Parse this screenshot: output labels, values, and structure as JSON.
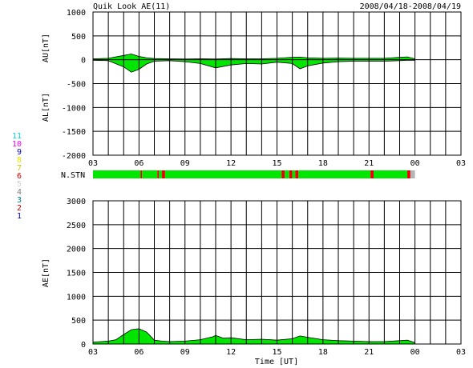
{
  "header": {
    "title": "Quik Look AE(11)",
    "date_range": "2008/04/18-2008/04/19"
  },
  "colors": {
    "fill_good": "#00e600",
    "fill_bad": "#e60000",
    "fill_missing": "#b4b4b4",
    "grid": "#000000"
  },
  "station_legend": [
    {
      "label": "11",
      "color": "#00d8d8"
    },
    {
      "label": "10",
      "color": "#ff00ff"
    },
    {
      "label": "9",
      "color": "#0000c8"
    },
    {
      "label": "8",
      "color": "#e6e600"
    },
    {
      "label": "7",
      "color": "#c8c800"
    },
    {
      "label": "6",
      "color": "#e60000"
    },
    {
      "label": "5",
      "color": "#d0d0d0"
    },
    {
      "label": "4",
      "color": "#808080"
    },
    {
      "label": "3",
      "color": "#008080"
    },
    {
      "label": "2",
      "color": "#c80000"
    },
    {
      "label": "1",
      "color": "#0000c8"
    }
  ],
  "chart_data": [
    {
      "type": "area",
      "panel": "AU/AL",
      "ylabel_upper": "AU[nT]",
      "ylabel_lower": "AL[nT]",
      "ylim": [
        -2000,
        1000
      ],
      "yticks": [
        1000,
        500,
        0,
        -500,
        -1000,
        -1500,
        -2000
      ],
      "xlim_hours": [
        3,
        27
      ],
      "xticks": [
        "03",
        "06",
        "09",
        "12",
        "15",
        "18",
        "21",
        "00",
        "03"
      ],
      "data_end_hour": 24.0,
      "grid": true,
      "au": {
        "name": "AU",
        "x": [
          3,
          4,
          5,
          5.5,
          6,
          6.5,
          7,
          8,
          9,
          10,
          11,
          12,
          13,
          14,
          15,
          16,
          16.5,
          17,
          18,
          19,
          20,
          21,
          22,
          23,
          23.5,
          24
        ],
        "values": [
          20,
          30,
          90,
          120,
          70,
          40,
          25,
          20,
          15,
          20,
          15,
          25,
          20,
          20,
          30,
          50,
          55,
          40,
          30,
          35,
          30,
          30,
          30,
          50,
          60,
          20
        ]
      },
      "al": {
        "name": "AL",
        "x": [
          3,
          4,
          5,
          5.5,
          6,
          6.5,
          7,
          8,
          9,
          10,
          11,
          12,
          13,
          14,
          15,
          16,
          16.5,
          17,
          18,
          19,
          20,
          21,
          22,
          23,
          23.5,
          24
        ],
        "values": [
          -10,
          -20,
          -150,
          -260,
          -200,
          -90,
          -30,
          -20,
          -40,
          -80,
          -170,
          -110,
          -80,
          -90,
          -50,
          -80,
          -190,
          -130,
          -70,
          -40,
          -30,
          -30,
          -30,
          -20,
          -10,
          -10
        ]
      }
    },
    {
      "type": "bar",
      "panel": "N.STN",
      "label": "N.STN",
      "segments": [
        {
          "start": 3.0,
          "end": 6.1,
          "status": "good"
        },
        {
          "start": 6.1,
          "end": 6.2,
          "status": "bad"
        },
        {
          "start": 6.2,
          "end": 7.2,
          "status": "good"
        },
        {
          "start": 7.2,
          "end": 7.3,
          "status": "bad"
        },
        {
          "start": 7.3,
          "end": 7.5,
          "status": "good"
        },
        {
          "start": 7.5,
          "end": 7.7,
          "status": "bad"
        },
        {
          "start": 7.7,
          "end": 15.3,
          "status": "good"
        },
        {
          "start": 15.3,
          "end": 15.5,
          "status": "bad"
        },
        {
          "start": 15.5,
          "end": 15.8,
          "status": "good"
        },
        {
          "start": 15.8,
          "end": 16.0,
          "status": "bad"
        },
        {
          "start": 16.0,
          "end": 16.2,
          "status": "good"
        },
        {
          "start": 16.2,
          "end": 16.4,
          "status": "bad"
        },
        {
          "start": 16.4,
          "end": 21.1,
          "status": "good"
        },
        {
          "start": 21.1,
          "end": 21.3,
          "status": "bad"
        },
        {
          "start": 21.3,
          "end": 23.5,
          "status": "good"
        },
        {
          "start": 23.5,
          "end": 23.7,
          "status": "bad"
        },
        {
          "start": 23.7,
          "end": 24.0,
          "status": "missing"
        }
      ]
    },
    {
      "type": "area",
      "panel": "AE",
      "ylabel": "AE[nT]",
      "xlabel": "Time [UT]",
      "ylim": [
        0,
        3000
      ],
      "yticks": [
        3000,
        2500,
        2000,
        1500,
        1000,
        500,
        0
      ],
      "xlim_hours": [
        3,
        27
      ],
      "xticks": [
        "03",
        "06",
        "09",
        "12",
        "15",
        "18",
        "21",
        "00",
        "03"
      ],
      "data_end_hour": 24.0,
      "grid": true,
      "ae": {
        "name": "AE",
        "x": [
          3,
          4,
          4.5,
          5,
          5.5,
          6,
          6.5,
          7,
          7.5,
          8,
          9,
          10,
          10.8,
          11,
          11.5,
          12,
          13,
          14,
          15,
          16,
          16.5,
          17,
          18,
          19,
          20,
          21,
          22,
          23,
          23.5,
          24
        ],
        "values": [
          40,
          60,
          90,
          200,
          300,
          320,
          250,
          80,
          60,
          50,
          60,
          90,
          150,
          180,
          120,
          130,
          90,
          100,
          80,
          110,
          170,
          140,
          90,
          70,
          60,
          50,
          50,
          70,
          80,
          30
        ]
      }
    }
  ]
}
